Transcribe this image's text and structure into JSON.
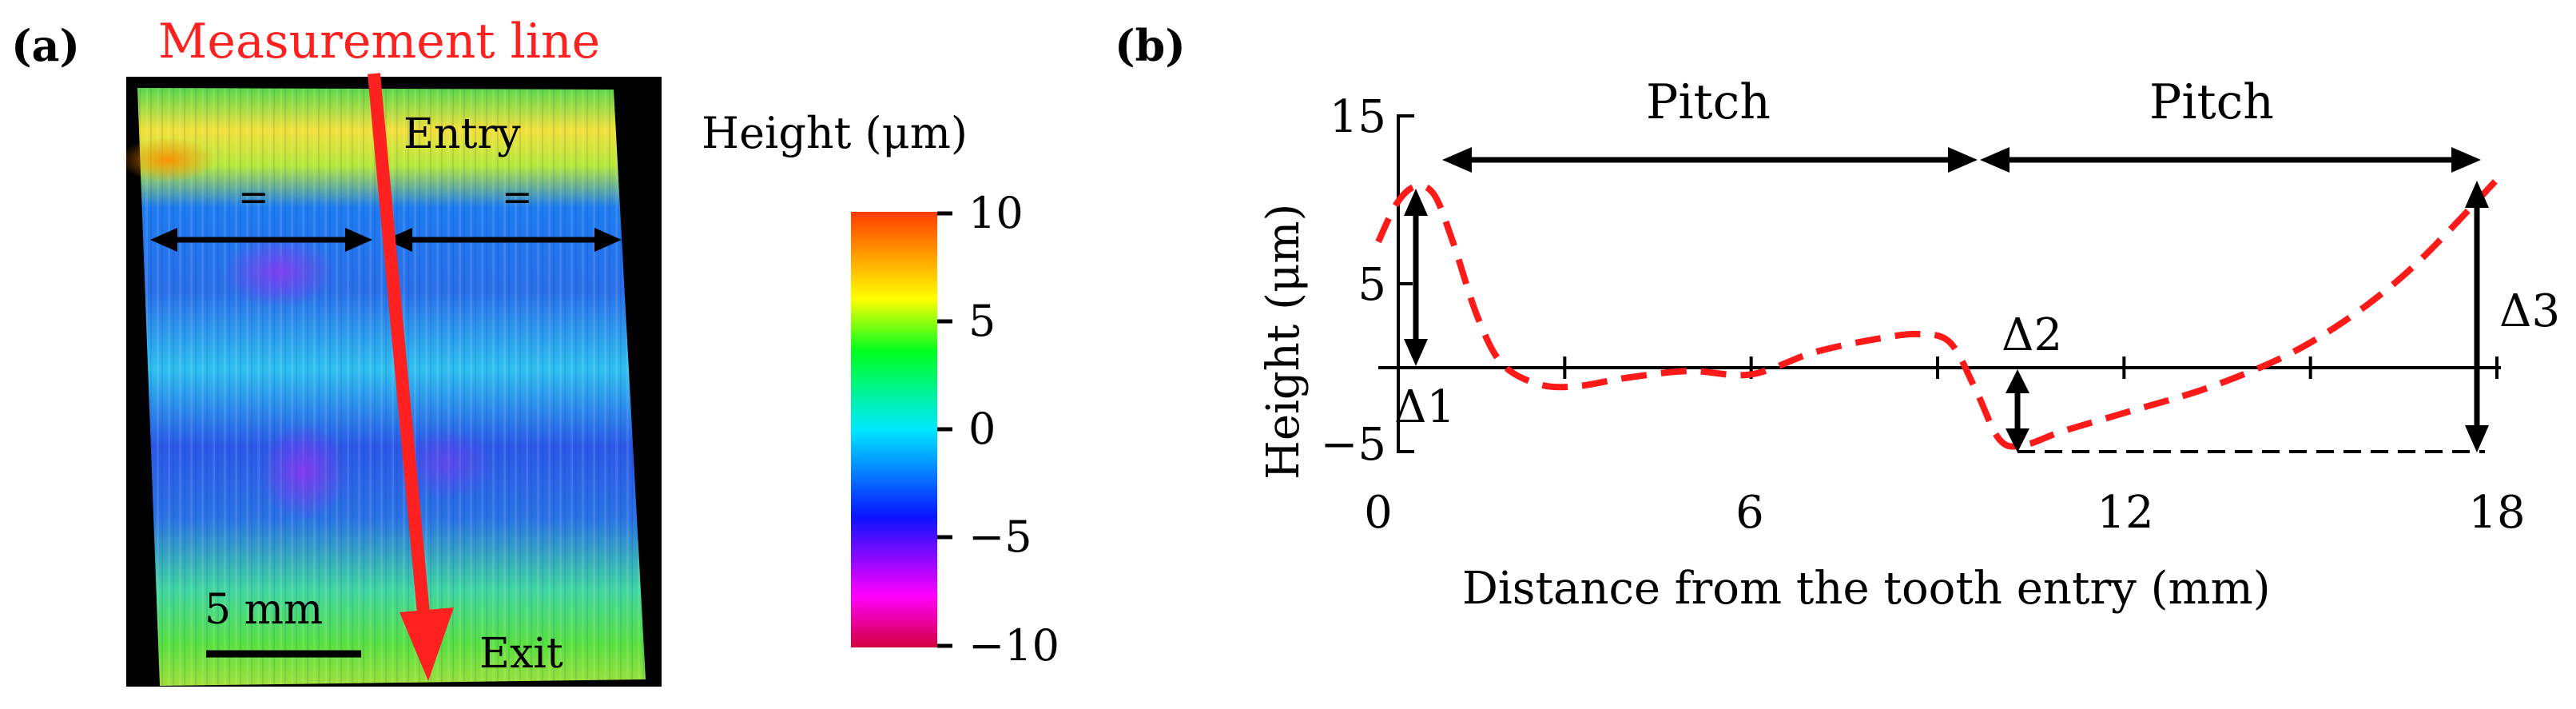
{
  "panel_a": {
    "label": "(a)",
    "measurement_label": "Measurement line",
    "entry_label": "Entry",
    "exit_label": "Exit",
    "equal_mark": "=",
    "scale_bar_label": "5 mm",
    "colorbar": {
      "title": "Height (μm)",
      "ticks": [
        "10",
        "5",
        "0",
        "−5",
        "−10"
      ],
      "colors": [
        "#d4003c",
        "#ff00ff",
        "#0a14ff",
        "#00e8ff",
        "#00ff20",
        "#ffff00",
        "#ff3c00"
      ]
    }
  },
  "panel_b": {
    "label": "(b)",
    "pitch_labels": [
      "Pitch",
      "Pitch"
    ],
    "delta_labels": [
      "Δ1",
      "Δ2",
      "Δ3"
    ]
  },
  "chart_data": {
    "type": "line",
    "xlabel": "Distance from the tooth entry (mm)",
    "ylabel": "Height (μm)",
    "xlim": [
      0,
      18
    ],
    "ylim": [
      -5,
      15
    ],
    "x_ticks": [
      "0",
      "6",
      "12",
      "18"
    ],
    "y_ticks": [
      "15",
      "5",
      "−5"
    ],
    "series": [
      {
        "color": "#ff1a1a",
        "x": [
          0,
          0.3,
          0.6,
          0.9,
          1.2,
          1.6,
          2.0,
          2.6,
          3.2,
          4.0,
          5.0,
          6.0,
          7.0,
          8.0,
          8.7,
          9.2,
          9.6,
          10.0,
          10.4,
          11.0,
          12.0,
          13.5,
          15.0,
          16.5,
          18.0
        ],
        "y": [
          7.5,
          9.8,
          10.8,
          10.3,
          7.5,
          3.0,
          0.2,
          -1.0,
          -1.1,
          -0.6,
          -0.2,
          -0.4,
          0.9,
          1.7,
          2.0,
          1.5,
          -1.2,
          -4.3,
          -4.6,
          -3.8,
          -2.7,
          -1.0,
          1.5,
          5.5,
          11.2
        ]
      }
    ],
    "annotations": [
      {
        "type": "arrow",
        "label": "Pitch",
        "x_start": 0.8,
        "x_end": 10.0,
        "y": 13
      },
      {
        "type": "arrow",
        "label": "Pitch",
        "x_start": 10.0,
        "x_end": 18.0,
        "y": 13
      },
      {
        "type": "arrow",
        "label": "Δ1",
        "x": 0.6,
        "y_start": 0,
        "y_end": 10.8
      },
      {
        "type": "arrow",
        "label": "Δ2",
        "x": 10.0,
        "y_start": -4.6,
        "y_end": 0
      },
      {
        "type": "arrow",
        "label": "Δ3",
        "x": 17.7,
        "y_start": -4.6,
        "y_end": 11.2
      }
    ],
    "reference_lines": [
      {
        "y": 0,
        "style": "solid"
      },
      {
        "y": -4.6,
        "x_start": 10.0,
        "x_end": 18.0,
        "style": "dashed"
      }
    ],
    "grid": false,
    "legend": "none"
  }
}
